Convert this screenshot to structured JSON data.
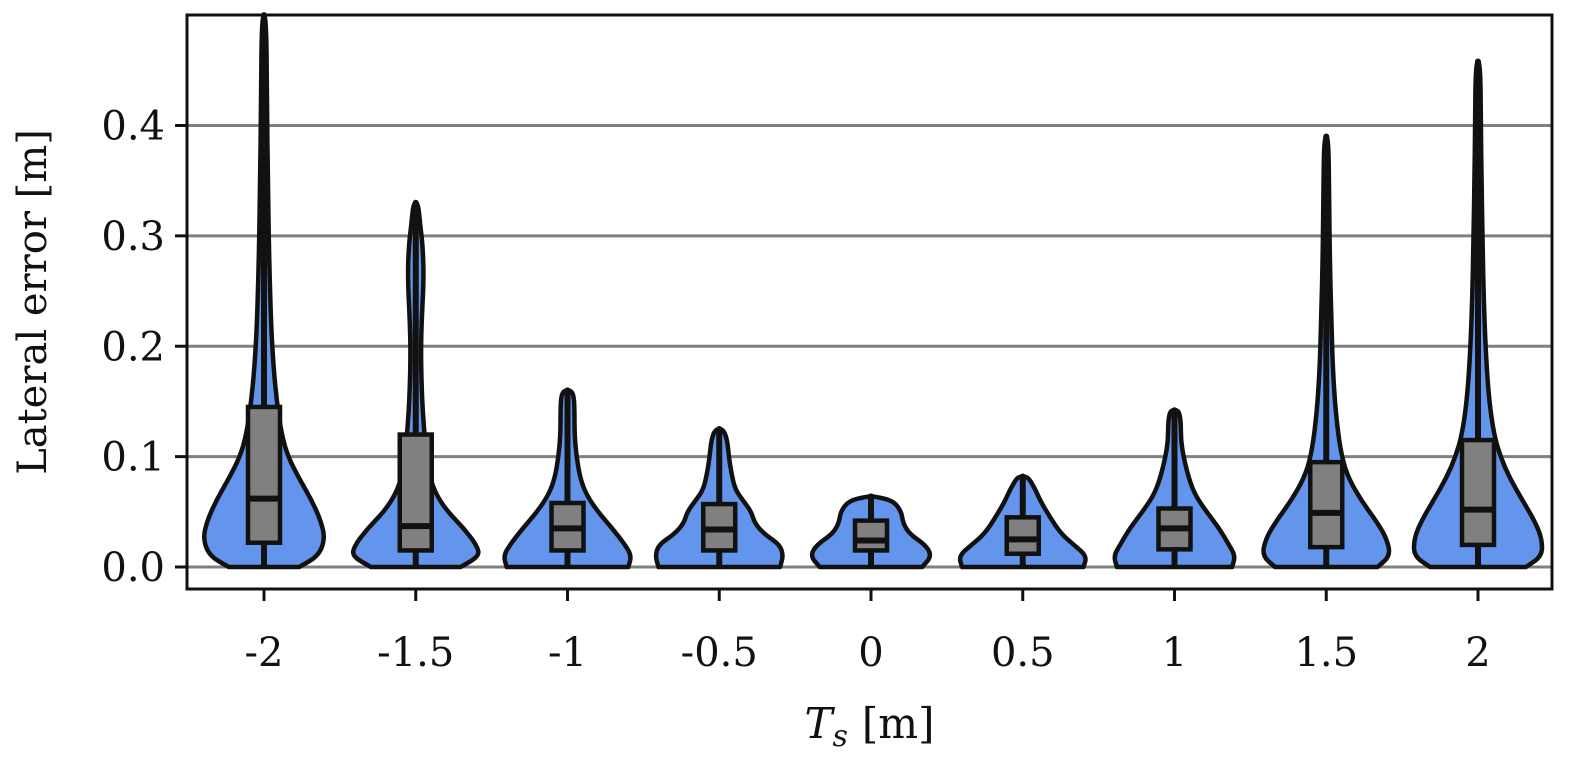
{
  "chart_data": {
    "type": "violin",
    "title": "",
    "xlabel": "T",
    "xlabel_subscript": "s",
    "xlabel_unit": "[m]",
    "ylabel": "Lateral error [m]",
    "ylim": [
      0.0,
      0.5
    ],
    "yticks": [
      "0.0",
      "0.1",
      "0.2",
      "0.3",
      "0.4"
    ],
    "grid": "horizontal",
    "fill_color": "#6495ED",
    "box_color": "#808080",
    "grid_color": "#808080",
    "edge_color": "#111111",
    "categories": [
      "-2",
      "-1.5",
      "-1",
      "-0.5",
      "0",
      "0.5",
      "1",
      "1.5",
      "2"
    ],
    "violins": [
      {
        "category": "-2",
        "min": 0.0,
        "max": 0.5,
        "q1": 0.022,
        "median": 0.062,
        "q3": 0.145,
        "profile": [
          [
            0.0,
            0.11
          ],
          [
            0.01,
            0.17
          ],
          [
            0.025,
            0.19
          ],
          [
            0.04,
            0.18
          ],
          [
            0.06,
            0.15
          ],
          [
            0.08,
            0.11
          ],
          [
            0.1,
            0.075
          ],
          [
            0.12,
            0.055
          ],
          [
            0.15,
            0.04
          ],
          [
            0.18,
            0.03
          ],
          [
            0.22,
            0.022
          ],
          [
            0.28,
            0.016
          ],
          [
            0.35,
            0.012
          ],
          [
            0.42,
            0.009
          ],
          [
            0.5,
            0.007
          ]
        ]
      },
      {
        "category": "-1.5",
        "min": 0.0,
        "max": 0.33,
        "q1": 0.015,
        "median": 0.037,
        "q3": 0.12,
        "profile": [
          [
            0.0,
            0.14
          ],
          [
            0.01,
            0.2
          ],
          [
            0.02,
            0.19
          ],
          [
            0.035,
            0.15
          ],
          [
            0.05,
            0.1
          ],
          [
            0.065,
            0.065
          ],
          [
            0.08,
            0.045
          ],
          [
            0.1,
            0.035
          ],
          [
            0.12,
            0.027
          ],
          [
            0.15,
            0.02
          ],
          [
            0.19,
            0.016
          ],
          [
            0.22,
            0.018
          ],
          [
            0.26,
            0.025
          ],
          [
            0.29,
            0.022
          ],
          [
            0.31,
            0.014
          ],
          [
            0.33,
            0.007
          ]
        ]
      },
      {
        "category": "-1",
        "min": 0.0,
        "max": 0.16,
        "q1": 0.015,
        "median": 0.035,
        "q3": 0.058,
        "profile": [
          [
            0.0,
            0.19
          ],
          [
            0.01,
            0.2
          ],
          [
            0.02,
            0.18
          ],
          [
            0.035,
            0.14
          ],
          [
            0.05,
            0.095
          ],
          [
            0.065,
            0.06
          ],
          [
            0.08,
            0.04
          ],
          [
            0.1,
            0.028
          ],
          [
            0.12,
            0.022
          ],
          [
            0.14,
            0.022
          ],
          [
            0.155,
            0.02
          ],
          [
            0.16,
            0.01
          ]
        ]
      },
      {
        "category": "-0.5",
        "min": 0.0,
        "max": 0.125,
        "q1": 0.015,
        "median": 0.034,
        "q3": 0.057,
        "profile": [
          [
            0.0,
            0.19
          ],
          [
            0.01,
            0.2
          ],
          [
            0.02,
            0.19
          ],
          [
            0.03,
            0.14
          ],
          [
            0.04,
            0.11
          ],
          [
            0.05,
            0.1
          ],
          [
            0.06,
            0.075
          ],
          [
            0.07,
            0.05
          ],
          [
            0.085,
            0.038
          ],
          [
            0.1,
            0.03
          ],
          [
            0.115,
            0.025
          ],
          [
            0.125,
            0.012
          ]
        ]
      },
      {
        "category": "0",
        "min": 0.0,
        "max": 0.064,
        "q1": 0.015,
        "median": 0.024,
        "q3": 0.042,
        "profile": [
          [
            0.0,
            0.16
          ],
          [
            0.01,
            0.19
          ],
          [
            0.02,
            0.17
          ],
          [
            0.03,
            0.12
          ],
          [
            0.04,
            0.1
          ],
          [
            0.05,
            0.095
          ],
          [
            0.06,
            0.07
          ],
          [
            0.064,
            0.01
          ]
        ]
      },
      {
        "category": "0.5",
        "min": 0.0,
        "max": 0.082,
        "q1": 0.012,
        "median": 0.025,
        "q3": 0.045,
        "profile": [
          [
            0.0,
            0.19
          ],
          [
            0.01,
            0.2
          ],
          [
            0.02,
            0.16
          ],
          [
            0.03,
            0.12
          ],
          [
            0.045,
            0.085
          ],
          [
            0.06,
            0.055
          ],
          [
            0.07,
            0.04
          ],
          [
            0.08,
            0.02
          ],
          [
            0.082,
            0.008
          ]
        ]
      },
      {
        "category": "1",
        "min": 0.0,
        "max": 0.142,
        "q1": 0.016,
        "median": 0.035,
        "q3": 0.053,
        "profile": [
          [
            0.0,
            0.18
          ],
          [
            0.01,
            0.19
          ],
          [
            0.02,
            0.17
          ],
          [
            0.035,
            0.14
          ],
          [
            0.05,
            0.1
          ],
          [
            0.065,
            0.065
          ],
          [
            0.08,
            0.045
          ],
          [
            0.1,
            0.028
          ],
          [
            0.115,
            0.02
          ],
          [
            0.13,
            0.02
          ],
          [
            0.14,
            0.015
          ],
          [
            0.142,
            0.007
          ]
        ]
      },
      {
        "category": "1.5",
        "min": 0.0,
        "max": 0.39,
        "q1": 0.018,
        "median": 0.049,
        "q3": 0.095,
        "profile": [
          [
            0.0,
            0.16
          ],
          [
            0.01,
            0.2
          ],
          [
            0.025,
            0.19
          ],
          [
            0.04,
            0.16
          ],
          [
            0.06,
            0.11
          ],
          [
            0.08,
            0.07
          ],
          [
            0.1,
            0.048
          ],
          [
            0.13,
            0.033
          ],
          [
            0.17,
            0.022
          ],
          [
            0.22,
            0.016
          ],
          [
            0.28,
            0.011
          ],
          [
            0.33,
            0.009
          ],
          [
            0.39,
            0.007
          ]
        ]
      },
      {
        "category": "2",
        "min": 0.0,
        "max": 0.458,
        "q1": 0.02,
        "median": 0.052,
        "q3": 0.115,
        "profile": [
          [
            0.0,
            0.15
          ],
          [
            0.01,
            0.2
          ],
          [
            0.025,
            0.2
          ],
          [
            0.04,
            0.18
          ],
          [
            0.06,
            0.14
          ],
          [
            0.08,
            0.1
          ],
          [
            0.1,
            0.07
          ],
          [
            0.12,
            0.05
          ],
          [
            0.15,
            0.035
          ],
          [
            0.19,
            0.025
          ],
          [
            0.24,
            0.018
          ],
          [
            0.3,
            0.014
          ],
          [
            0.35,
            0.011
          ],
          [
            0.4,
            0.009
          ],
          [
            0.458,
            0.007
          ]
        ]
      }
    ]
  }
}
